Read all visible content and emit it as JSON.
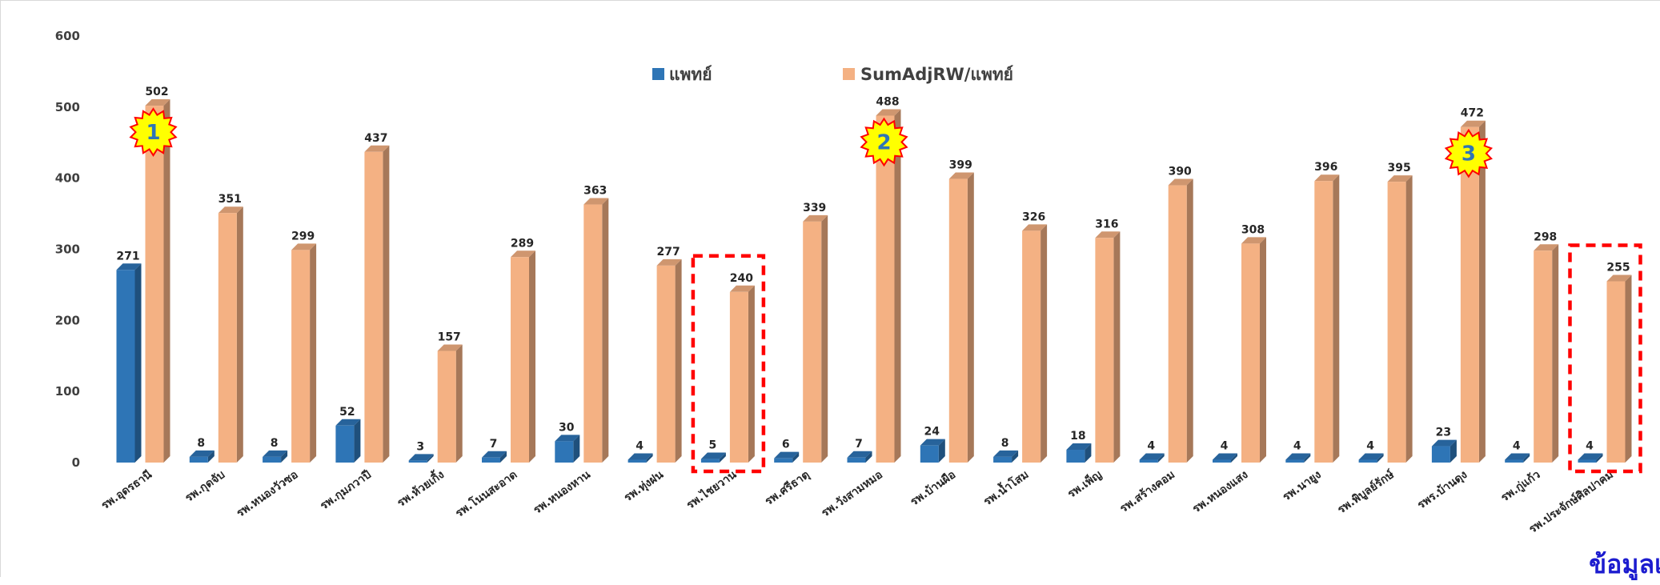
{
  "chart_data": {
    "type": "bar",
    "ylim": [
      0,
      600
    ],
    "yticks": [
      0,
      100,
      200,
      300,
      400,
      500,
      600
    ],
    "grid": false,
    "legend_position": "top-center",
    "categories": [
      "รพ.อุดรธานี",
      "รพ.กุดจับ",
      "รพ.หนองวัวซอ",
      "รพ.กุมภวาปี",
      "รพ.ห้วยเกิ้ง",
      "รพ.โนนสะอาด",
      "รพ.หนองหาน",
      "รพ.ทุ่งฝน",
      "รพ.ไชยวาน",
      "รพ.ศรีธาตุ",
      "รพ.วังสามหมอ",
      "รพ.บ้านผือ",
      "รพ.น้ำโสม",
      "รพ.เพ็ญ",
      "รพ.สร้างคอม",
      "รพ.หนองแสง",
      "รพ.นายูง",
      "รพ.พิบูลย์รักษ์",
      "รพร.บ้านดุง",
      "รพ.กู่แก้ว",
      "รพ.ประจักษ์ศิลปาคม"
    ],
    "series": [
      {
        "name": "แพทย์",
        "color": "#2e75b6",
        "values": [
          271,
          8,
          8,
          52,
          3,
          7,
          30,
          4,
          5,
          6,
          7,
          24,
          8,
          18,
          4,
          4,
          4,
          4,
          23,
          4,
          4
        ]
      },
      {
        "name": "SumAdjRW/แพทย์",
        "color": "#f4b183",
        "values": [
          502,
          351,
          299,
          437,
          157,
          289,
          363,
          277,
          240,
          339,
          488,
          399,
          326,
          316,
          390,
          308,
          396,
          395,
          472,
          298,
          255
        ]
      }
    ],
    "rank_badges": [
      {
        "label": "1",
        "category_index": 0
      },
      {
        "label": "2",
        "category_index": 10
      },
      {
        "label": "3",
        "category_index": 18
      }
    ],
    "highlighted_categories": [
      8,
      20
    ],
    "highlight_color": "#ff0000",
    "badge_color": "#ffff00",
    "badge_border": "#ff0000"
  },
  "footer_text": "ข้อมูลเ"
}
